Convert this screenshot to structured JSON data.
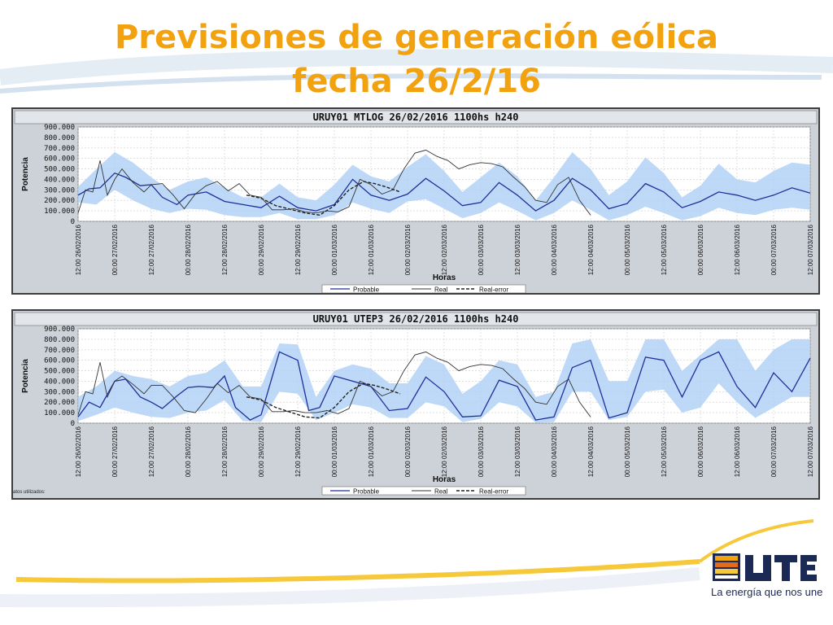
{
  "slide": {
    "title_line1": "Previsiones de generación eólica",
    "title_line2": "fecha 26/2/16",
    "tagline": "La energía que nos une",
    "footnote": "atos utilizados:",
    "colors": {
      "title": "#f2a10f",
      "probable": "#1f2f9a",
      "band": "#aed0f5",
      "real": "#333333",
      "panel": "#cdd2d9",
      "plot_bg": "#ffffff"
    },
    "icons": [
      "ute-logo-icon"
    ]
  },
  "chart_data": [
    {
      "type": "line",
      "title": "URUY01  MTLOG  26/02/2016  1100hs   h240",
      "xlabel": "Horas",
      "ylabel": "Potencia",
      "ylim": [
        0,
        900000
      ],
      "yticks": [
        "900.000",
        "800.000",
        "700.000",
        "600.000",
        "500.000",
        "400.000",
        "300.000",
        "200.000",
        "100.000",
        "0"
      ],
      "xticks": [
        "12:00 26/02/2016",
        "00:00 27/02/2016",
        "12:00 27/02/2016",
        "00:00 28/02/2016",
        "12:00 28/02/2016",
        "00:00 29/02/2016",
        "12:00 29/02/2016",
        "00:00 01/03/2016",
        "12:00 01/03/2016",
        "00:00 02/03/2016",
        "12:00 02/03/2016",
        "00:00 03/03/2016",
        "12:00 03/03/2016",
        "00:00 04/03/2016",
        "12:00 04/03/2016",
        "00:00 05/03/2016",
        "12:00 05/03/2016",
        "00:00 06/03/2016",
        "12:00 06/03/2016",
        "00:00 07/03/2016",
        "12:00 07/03/2016"
      ],
      "xlim": [
        0,
        20
      ],
      "grid": true,
      "legend": "bottom-center",
      "legend_labels": [
        "Probable",
        "Real",
        "Real-error"
      ],
      "series": [
        {
          "name": "Probable",
          "x": [
            0,
            0.3,
            0.6,
            1,
            1.3,
            1.7,
            2,
            2.3,
            2.7,
            3,
            3.5,
            4,
            4.5,
            5,
            5.5,
            6,
            6.5,
            7,
            7.5,
            8,
            8.5,
            9,
            9.5,
            10,
            10.5,
            11,
            11.5,
            12,
            12.5,
            13,
            13.5,
            14,
            14.5,
            15,
            15.5,
            16,
            16.5,
            17,
            17.5,
            18,
            18.5,
            19,
            19.5,
            20
          ],
          "y": [
            250000,
            310000,
            320000,
            460000,
            420000,
            340000,
            350000,
            230000,
            160000,
            250000,
            280000,
            190000,
            160000,
            130000,
            240000,
            130000,
            100000,
            160000,
            400000,
            250000,
            200000,
            260000,
            410000,
            290000,
            150000,
            180000,
            370000,
            250000,
            100000,
            200000,
            410000,
            300000,
            120000,
            170000,
            360000,
            280000,
            130000,
            190000,
            280000,
            250000,
            200000,
            250000,
            320000,
            270000
          ]
        },
        {
          "name": "Band upper",
          "x": [
            0,
            0.5,
            1,
            1.5,
            2,
            2.5,
            3,
            3.5,
            4,
            4.5,
            5,
            5.5,
            6,
            6.5,
            7,
            7.5,
            8,
            8.5,
            9,
            9.5,
            10,
            10.5,
            11,
            11.5,
            12,
            12.5,
            13,
            13.5,
            14,
            14.5,
            15,
            15.5,
            16,
            16.5,
            17,
            17.5,
            18,
            18.5,
            19,
            19.5,
            20
          ],
          "y": [
            330000,
            500000,
            660000,
            560000,
            420000,
            300000,
            380000,
            420000,
            320000,
            230000,
            230000,
            360000,
            230000,
            200000,
            350000,
            540000,
            430000,
            380000,
            520000,
            640000,
            480000,
            280000,
            420000,
            560000,
            430000,
            200000,
            420000,
            660000,
            500000,
            250000,
            380000,
            610000,
            460000,
            230000,
            340000,
            550000,
            400000,
            370000,
            480000,
            560000,
            540000
          ]
        },
        {
          "name": "Band lower",
          "x": [
            0,
            0.5,
            1,
            1.5,
            2,
            2.5,
            3,
            3.5,
            4,
            4.5,
            5,
            5.5,
            6,
            6.5,
            7,
            7.5,
            8,
            8.5,
            9,
            9.5,
            10,
            10.5,
            11,
            11.5,
            12,
            12.5,
            13,
            13.5,
            14,
            14.5,
            15,
            15.5,
            16,
            16.5,
            17,
            17.5,
            18,
            18.5,
            19,
            19.5,
            20
          ],
          "y": [
            180000,
            160000,
            300000,
            200000,
            120000,
            80000,
            120000,
            110000,
            60000,
            40000,
            40000,
            80000,
            20000,
            20000,
            60000,
            180000,
            120000,
            80000,
            190000,
            210000,
            120000,
            30000,
            80000,
            180000,
            100000,
            10000,
            80000,
            200000,
            110000,
            10000,
            60000,
            140000,
            80000,
            10000,
            50000,
            130000,
            80000,
            60000,
            110000,
            130000,
            110000
          ]
        },
        {
          "name": "Real",
          "x": [
            0,
            0.2,
            0.4,
            0.6,
            0.8,
            1,
            1.2,
            1.5,
            1.8,
            2,
            2.3,
            2.6,
            2.9,
            3.2,
            3.5,
            3.8,
            4.1,
            4.4,
            4.7,
            5,
            5.3,
            5.6,
            5.9,
            6.2,
            6.5,
            6.8,
            7.1,
            7.4,
            7.7,
            8,
            8.3,
            8.6,
            8.9,
            9.2,
            9.5,
            9.8,
            10.1,
            10.4,
            10.7,
            11,
            11.3,
            11.6,
            11.9,
            12.2,
            12.5,
            12.8,
            13.1,
            13.4,
            13.7,
            14
          ],
          "y": [
            80000,
            300000,
            280000,
            580000,
            250000,
            400000,
            500000,
            370000,
            280000,
            350000,
            360000,
            250000,
            120000,
            260000,
            340000,
            380000,
            290000,
            360000,
            250000,
            230000,
            110000,
            110000,
            120000,
            90000,
            80000,
            100000,
            90000,
            140000,
            400000,
            350000,
            260000,
            300000,
            500000,
            650000,
            680000,
            620000,
            580000,
            500000,
            540000,
            560000,
            550000,
            520000,
            420000,
            330000,
            200000,
            180000,
            350000,
            420000,
            200000,
            60000
          ]
        },
        {
          "name": "Real-error",
          "x": [
            4.6,
            5,
            5.4,
            6.2,
            6.6,
            7,
            7.4,
            7.8,
            8.1,
            8.4,
            8.8
          ],
          "y": [
            250000,
            220000,
            150000,
            80000,
            60000,
            150000,
            300000,
            380000,
            360000,
            330000,
            280000
          ]
        }
      ]
    },
    {
      "type": "line",
      "title": "URUY01  UTEP3  26/02/2016  1100hs   h240",
      "xlabel": "Horas",
      "ylabel": "Potencia",
      "ylim": [
        0,
        900000
      ],
      "yticks": [
        "900.000",
        "800.000",
        "700.000",
        "600.000",
        "500.000",
        "400.000",
        "300.000",
        "200.000",
        "100.000",
        "0"
      ],
      "xticks": [
        "12:00 26/02/2016",
        "00:00 27/02/2016",
        "12:00 27/02/2016",
        "00:00 28/02/2016",
        "12:00 28/02/2016",
        "00:00 29/02/2016",
        "12:00 29/02/2016",
        "00:00 01/03/2016",
        "12:00 01/03/2016",
        "00:00 02/03/2016",
        "12:00 02/03/2016",
        "00:00 03/03/2016",
        "12:00 03/03/2016",
        "00:00 04/03/2016",
        "12:00 04/03/2016",
        "00:00 05/03/2016",
        "12:00 05/03/2016",
        "00:00 06/03/2016",
        "12:00 06/03/2016",
        "00:00 07/03/2016",
        "12:00 07/03/2016"
      ],
      "xlim": [
        0,
        20
      ],
      "grid": true,
      "legend": "bottom-center",
      "legend_labels": [
        "Probable",
        "Real",
        "Real-error"
      ],
      "series": [
        {
          "name": "Probable",
          "x": [
            0,
            0.3,
            0.6,
            1,
            1.3,
            1.7,
            2,
            2.3,
            2.7,
            3,
            3.3,
            3.7,
            4,
            4.3,
            4.7,
            5,
            5.5,
            6,
            6.3,
            6.6,
            7,
            7.5,
            8,
            8.5,
            9,
            9.5,
            10,
            10.5,
            11,
            11.5,
            12,
            12.5,
            13,
            13.5,
            14,
            14.5,
            15,
            15.5,
            16,
            16.5,
            17,
            17.5,
            18,
            18.5,
            19,
            19.5,
            20
          ],
          "y": [
            60000,
            200000,
            150000,
            400000,
            420000,
            250000,
            200000,
            140000,
            260000,
            340000,
            350000,
            340000,
            450000,
            150000,
            30000,
            80000,
            680000,
            600000,
            120000,
            150000,
            450000,
            400000,
            350000,
            120000,
            140000,
            440000,
            300000,
            60000,
            70000,
            410000,
            350000,
            30000,
            60000,
            530000,
            600000,
            50000,
            100000,
            630000,
            600000,
            250000,
            600000,
            680000,
            350000,
            150000,
            480000,
            300000,
            620000
          ]
        },
        {
          "name": "Band upper",
          "x": [
            0,
            0.5,
            1,
            1.5,
            2,
            2.5,
            3,
            3.5,
            4,
            4.5,
            5,
            5.5,
            6,
            6.5,
            7,
            7.5,
            8,
            8.5,
            9,
            9.5,
            10,
            10.5,
            11,
            11.5,
            12,
            12.5,
            13,
            13.5,
            14,
            14.5,
            15,
            15.5,
            16,
            16.5,
            17,
            17.5,
            18,
            18.5,
            19,
            19.5,
            20
          ],
          "y": [
            250000,
            350000,
            500000,
            450000,
            420000,
            350000,
            450000,
            480000,
            600000,
            350000,
            350000,
            760000,
            750000,
            250000,
            500000,
            560000,
            520000,
            380000,
            380000,
            640000,
            560000,
            280000,
            400000,
            600000,
            560000,
            250000,
            300000,
            760000,
            800000,
            400000,
            400000,
            800000,
            800000,
            500000,
            650000,
            800000,
            800000,
            500000,
            700000,
            800000,
            800000
          ]
        },
        {
          "name": "Band lower",
          "x": [
            0,
            0.5,
            1,
            1.5,
            2,
            2.5,
            3,
            3.5,
            4,
            4.5,
            5,
            5.5,
            6,
            6.5,
            7,
            7.5,
            8,
            8.5,
            9,
            9.5,
            10,
            10.5,
            11,
            11.5,
            12,
            12.5,
            13,
            13.5,
            14,
            14.5,
            15,
            15.5,
            16,
            16.5,
            17,
            17.5,
            18,
            18.5,
            19,
            19.5,
            20
          ],
          "y": [
            20000,
            80000,
            150000,
            100000,
            60000,
            50000,
            100000,
            120000,
            220000,
            20000,
            10000,
            300000,
            280000,
            30000,
            100000,
            180000,
            150000,
            50000,
            50000,
            200000,
            160000,
            10000,
            40000,
            200000,
            160000,
            5000,
            10000,
            300000,
            300000,
            30000,
            60000,
            300000,
            320000,
            100000,
            150000,
            380000,
            200000,
            50000,
            150000,
            250000,
            250000
          ]
        },
        {
          "name": "Real",
          "x": [
            0,
            0.2,
            0.4,
            0.6,
            0.8,
            1,
            1.2,
            1.5,
            1.8,
            2,
            2.3,
            2.6,
            2.9,
            3.2,
            3.5,
            3.8,
            4.1,
            4.4,
            4.7,
            5,
            5.3,
            5.6,
            5.9,
            6.2,
            6.5,
            6.8,
            7.1,
            7.4,
            7.7,
            8,
            8.3,
            8.6,
            8.9,
            9.2,
            9.5,
            9.8,
            10.1,
            10.4,
            10.7,
            11,
            11.3,
            11.6,
            11.9,
            12.2,
            12.5,
            12.8,
            13.1,
            13.4,
            13.7,
            14
          ],
          "y": [
            80000,
            300000,
            280000,
            580000,
            250000,
            400000,
            450000,
            370000,
            280000,
            360000,
            360000,
            250000,
            120000,
            100000,
            230000,
            380000,
            290000,
            360000,
            250000,
            230000,
            110000,
            110000,
            120000,
            100000,
            100000,
            120000,
            90000,
            140000,
            400000,
            350000,
            260000,
            300000,
            500000,
            650000,
            680000,
            620000,
            580000,
            500000,
            540000,
            560000,
            550000,
            520000,
            420000,
            330000,
            200000,
            180000,
            350000,
            420000,
            200000,
            60000
          ]
        },
        {
          "name": "Real-error",
          "x": [
            4.6,
            5,
            5.4,
            6.2,
            6.6,
            7,
            7.4,
            7.8,
            8.1,
            8.4,
            8.8
          ],
          "y": [
            250000,
            220000,
            150000,
            60000,
            50000,
            150000,
            300000,
            380000,
            360000,
            330000,
            280000
          ]
        }
      ]
    }
  ]
}
